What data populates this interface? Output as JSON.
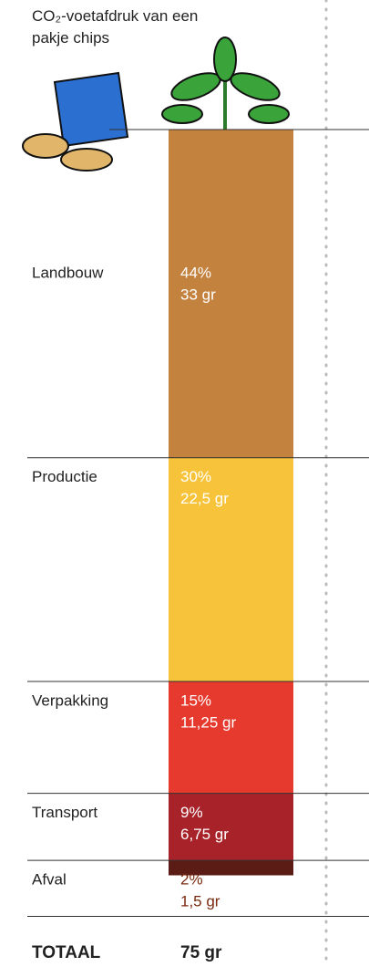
{
  "chart_data": {
    "type": "stacked-column",
    "title": "CO₂-voetafdruk van een pakje chips",
    "categories": [
      "Landbouw",
      "Productie",
      "Verpakking",
      "Transport",
      "Afval"
    ],
    "values": [
      33,
      22.5,
      11.25,
      6.75,
      1.5
    ],
    "value_labels": [
      "33 gr",
      "22,5 gr",
      "11,25 gr",
      "6,75 gr",
      "1,5 gr"
    ],
    "shares": [
      44,
      30,
      15,
      9,
      2
    ],
    "share_labels": [
      "44%",
      "30%",
      "15%",
      "9%",
      "2%"
    ],
    "colors": [
      "#c4823f",
      "#f6c33a",
      "#e63a2e",
      "#a8222a",
      "#5a1c14"
    ],
    "label_colors": [
      "#ffffff",
      "#ffffff",
      "#ffffff",
      "#ffffff",
      "#7a2a10"
    ],
    "total_name": "TOTAAL",
    "total": 75,
    "total_label": "75 gr"
  }
}
